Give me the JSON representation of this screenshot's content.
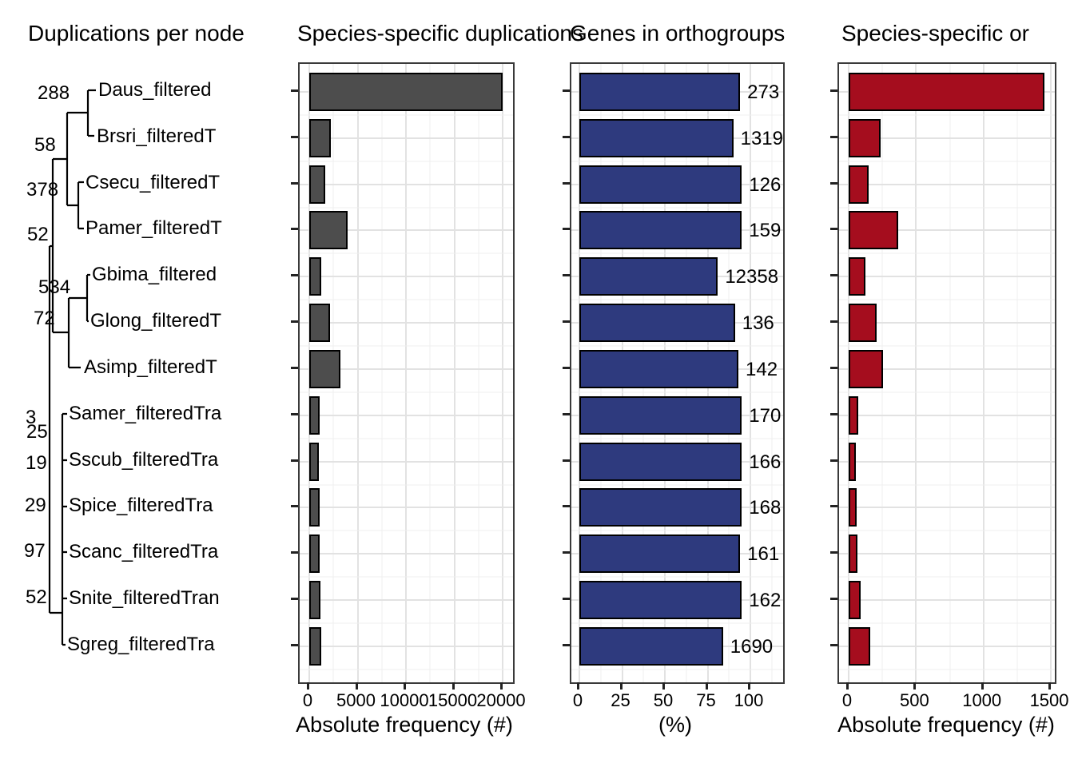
{
  "tree": {
    "title": "Duplications per node",
    "species": [
      "Daus_filtered",
      "Brsri_filteredT",
      "Csecu_filteredT",
      "Pamer_filteredT",
      "Gbima_filtered",
      "Glong_filteredT",
      "Asimp_filteredT",
      "Samer_filteredTra",
      "Sscub_filteredTra",
      "Spice_filteredTra",
      "Scanc_filteredTra",
      "Snite_filteredTran",
      "Sgreg_filteredTra"
    ],
    "node_labels": [
      "288",
      "58",
      "378",
      "52",
      "534",
      "72",
      "3",
      "25",
      "19",
      "29",
      "97",
      "52"
    ]
  },
  "chart_data": [
    {
      "type": "bar",
      "orientation": "horizontal",
      "title": "Species-specific duplications",
      "xlabel": "Absolute frequency (#)",
      "x_ticks": [
        0,
        5000,
        10000,
        15000,
        20000
      ],
      "xlim": [
        0,
        21000
      ],
      "grid": "on",
      "legend": "none",
      "bar_color": "#4D4D4D",
      "categories": [
        "Daus_filtered",
        "Brsri_filteredT",
        "Csecu_filteredT",
        "Pamer_filteredT",
        "Gbima_filtered",
        "Glong_filteredT",
        "Asimp_filteredT",
        "Samer_filteredTra",
        "Sscub_filteredTra",
        "Spice_filteredTra",
        "Scanc_filteredTra",
        "Snite_filteredTran",
        "Sgreg_filteredTra"
      ],
      "values": [
        20000,
        2230,
        1650,
        3970,
        1240,
        2150,
        3220,
        1070,
        1000,
        1100,
        1100,
        1150,
        1240
      ]
    },
    {
      "type": "bar",
      "orientation": "horizontal",
      "title": "Genes in orthogroups",
      "xlabel": "(%)",
      "x_ticks": [
        0,
        25,
        50,
        75,
        100
      ],
      "xlim": [
        0,
        119
      ],
      "grid": "on",
      "legend": "none",
      "bar_color": "#2E3A7E",
      "categories": [
        "Daus_filtered",
        "Brsri_filteredT",
        "Csecu_filteredT",
        "Pamer_filteredT",
        "Gbima_filtered",
        "Glong_filteredT",
        "Asimp_filteredT",
        "Samer_filteredTra",
        "Sscub_filteredTra",
        "Spice_filteredTra",
        "Scanc_filteredTra",
        "Snite_filteredTran",
        "Sgreg_filteredTra"
      ],
      "values": [
        94,
        90,
        95,
        95,
        81,
        91,
        93,
        95,
        95,
        95,
        94,
        95,
        84
      ],
      "bar_labels": [
        "273",
        "1319",
        "126",
        "159",
        "12358",
        "136",
        "142",
        "170",
        "166",
        "168",
        "161",
        "162",
        "1690"
      ]
    },
    {
      "type": "bar",
      "orientation": "horizontal",
      "title": "Species-specific or",
      "xlabel": "Absolute frequency (#)",
      "x_ticks": [
        0,
        500,
        1000,
        1500
      ],
      "xlim": [
        0,
        1530
      ],
      "grid": "on",
      "legend": "none",
      "bar_color": "#A50D1E",
      "categories": [
        "Daus_filtered",
        "Brsri_filteredT",
        "Csecu_filteredT",
        "Pamer_filteredT",
        "Gbima_filtered",
        "Glong_filteredT",
        "Asimp_filteredT",
        "Samer_filteredTra",
        "Sscub_filteredTra",
        "Spice_filteredTra",
        "Scanc_filteredTra",
        "Snite_filteredTran",
        "Sgreg_filteredTra"
      ],
      "values": [
        1450,
        240,
        150,
        370,
        125,
        205,
        255,
        70,
        55,
        60,
        65,
        90,
        160
      ]
    }
  ]
}
